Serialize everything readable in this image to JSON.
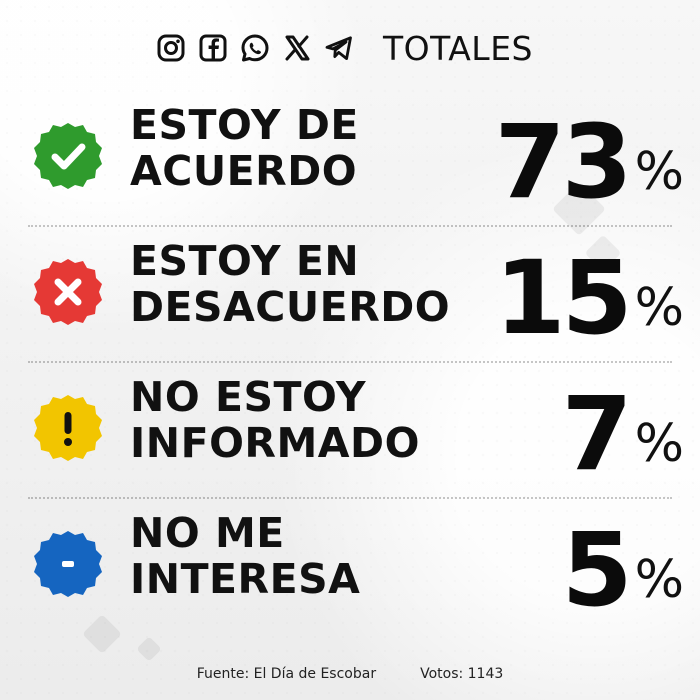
{
  "header": {
    "title": "TOTALES",
    "icons": [
      "instagram-icon",
      "facebook-icon",
      "whatsapp-icon",
      "x-icon",
      "telegram-icon"
    ]
  },
  "rows": [
    {
      "label": "ESTOY DE ACUERDO",
      "value": "73",
      "percent_sign": "%",
      "icon": "check-badge-icon",
      "color": "#2f9b2d"
    },
    {
      "label": "ESTOY EN DESACUERDO",
      "value": "15",
      "percent_sign": "%",
      "icon": "x-badge-icon",
      "color": "#e53935"
    },
    {
      "label": "NO ESTOY INFORMADO",
      "value": "7",
      "percent_sign": "%",
      "icon": "exclamation-badge-icon",
      "color": "#f2c500"
    },
    {
      "label": "NO ME INTERESA",
      "value": "5",
      "percent_sign": "%",
      "icon": "minus-badge-icon",
      "color": "#1565c0"
    }
  ],
  "footer": {
    "source": "Fuente: El Día de Escobar",
    "votes": "Votos: 1143"
  }
}
